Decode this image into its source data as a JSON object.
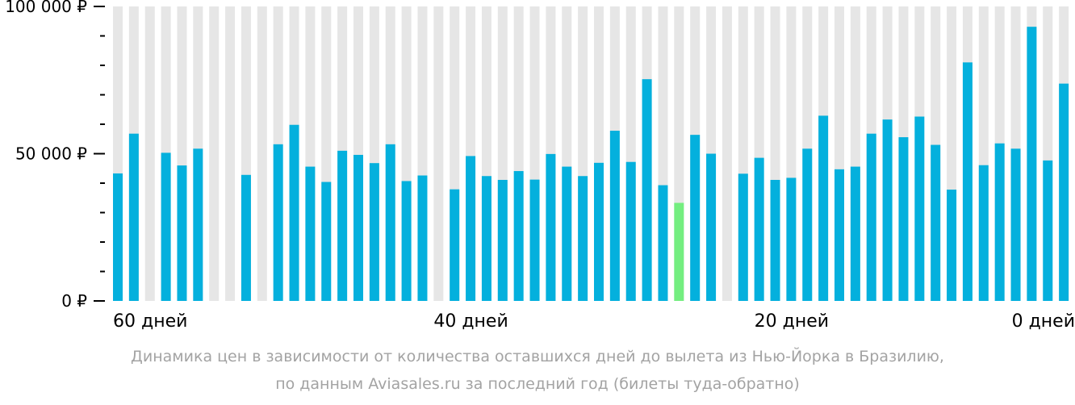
{
  "chart_data": {
    "type": "bar",
    "currency_ticks": [
      "100 000 ₽",
      "50 000 ₽",
      "0 ₽"
    ],
    "y_tick_values": [
      100000,
      50000,
      0
    ],
    "ylim": [
      0,
      100000
    ],
    "x_tick_labels": [
      "60 дней",
      "40 дней",
      "20 дней",
      "0 дней"
    ],
    "x_tick_days": [
      60,
      40,
      20,
      0
    ],
    "days_range": [
      60,
      0
    ],
    "grid": true,
    "colors": {
      "bar": "#04b0dd",
      "highlight": "#74ee80",
      "column_bg": "#e6e6e6",
      "axis": "#000000"
    },
    "highlight_day": 25,
    "values": [
      43300,
      56800,
      null,
      50300,
      46000,
      51700,
      null,
      null,
      42800,
      null,
      53200,
      59800,
      45600,
      40400,
      51000,
      49600,
      46800,
      53200,
      40700,
      42600,
      null,
      37900,
      49200,
      42400,
      41100,
      44100,
      41200,
      49900,
      45600,
      42400,
      46900,
      57800,
      47200,
      75300,
      39300,
      33300,
      56400,
      50000,
      null,
      43200,
      48600,
      41100,
      41800,
      51700,
      62900,
      44700,
      45600,
      56800,
      61600,
      55600,
      62600,
      53000,
      37800,
      81000,
      46100,
      53500,
      51700,
      93100,
      47700,
      73800
    ]
  },
  "caption": {
    "line1": "Динамика цен в зависимости от количества оставшихся дней до вылета из Нью-Йорка в Бразилию,",
    "line2": "по данным Aviasales.ru за последний год (билеты туда-обратно)"
  }
}
